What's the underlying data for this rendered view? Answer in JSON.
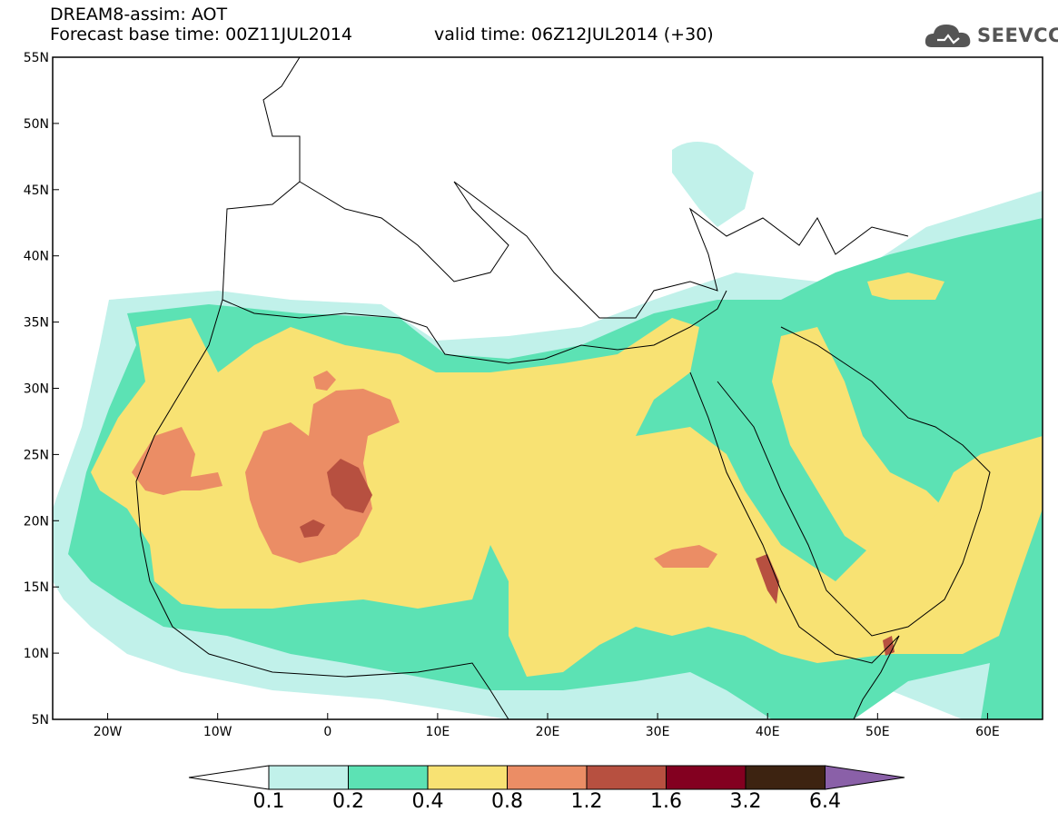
{
  "header": {
    "title": "DREAM8-assim: AOT",
    "base_time": "Forecast base time: 00Z11JUL2014",
    "valid_time": "valid time: 06Z12JUL2014 (+30)",
    "logo_text": "SEEVCCC"
  },
  "map": {
    "lon_range": [
      -25,
      65
    ],
    "lat_range": [
      5,
      55
    ],
    "lat_labels": [
      "55N",
      "50N",
      "45N",
      "40N",
      "35N",
      "30N",
      "25N",
      "20N",
      "15N",
      "10N",
      "5N"
    ],
    "lon_labels": [
      "20W",
      "10W",
      "0",
      "10E",
      "20E",
      "30E",
      "40E",
      "50E",
      "60E"
    ]
  },
  "colorbar": {
    "colors": [
      "#ffffff",
      "#c1f1ea",
      "#5ce2b4",
      "#f8e273",
      "#eb8d65",
      "#b75040",
      "#830020",
      "#3d2311",
      "#8a60a8"
    ],
    "labels": [
      "0.1",
      "0.2",
      "0.4",
      "0.8",
      "1.2",
      "1.6",
      "3.2",
      "6.4"
    ]
  }
}
